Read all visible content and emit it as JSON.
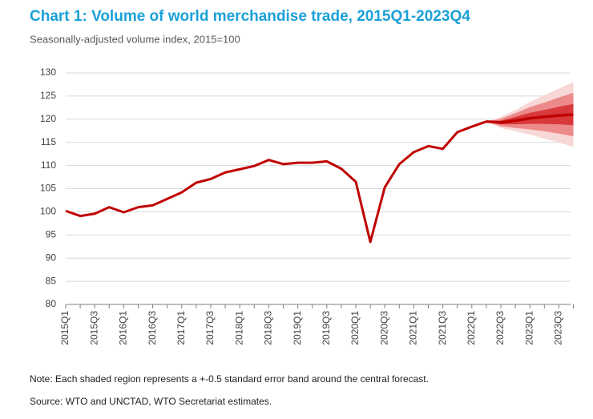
{
  "chart_data": {
    "type": "line",
    "title": "Chart 1: Volume of world merchandise trade, 2015Q1-2023Q4",
    "subtitle": "Seasonally-adjusted volume index, 2015=100",
    "note": "Note: Each shaded region represents a +-0.5 standard error band around the central forecast.",
    "source": "Source: WTO and UNCTAD, WTO Secretariat estimates.",
    "categories": [
      "2015Q1",
      null,
      "2015Q3",
      null,
      "2016Q1",
      null,
      "2016Q3",
      null,
      "2017Q1",
      null,
      "2017Q3",
      null,
      "2018Q1",
      null,
      "2018Q3",
      null,
      "2019Q1",
      null,
      "2019Q3",
      null,
      "2020Q1",
      null,
      "2020Q3",
      null,
      "2021Q1",
      null,
      "2021Q3",
      null,
      "2022Q1",
      null,
      "2022Q3",
      null,
      "2023Q1",
      null,
      "2023Q3",
      null
    ],
    "series": [
      {
        "color": "#c00000",
        "values": [
          100.2,
          99.1,
          99.6,
          101.0,
          99.9,
          101.0,
          101.4,
          102.8,
          104.2,
          106.3,
          107.1,
          108.5,
          109.2,
          109.9,
          111.2,
          110.3,
          110.6,
          110.6,
          110.9,
          109.3,
          106.5,
          93.5,
          105.3,
          110.3,
          112.9,
          114.2,
          113.6,
          117.2,
          118.4,
          119.5,
          null,
          null,
          null,
          null,
          null,
          null
        ]
      },
      {
        "color": "#c00000",
        "values": [
          null,
          null,
          null,
          null,
          null,
          null,
          null,
          null,
          null,
          null,
          null,
          null,
          null,
          null,
          null,
          null,
          null,
          null,
          null,
          null,
          null,
          null,
          null,
          null,
          null,
          null,
          null,
          null,
          null,
          119.5,
          119.3,
          119.7,
          120.2,
          120.5,
          120.8,
          121.0
        ]
      }
    ],
    "bands": [
      {
        "color": "#f8d7d7",
        "upper": [
          null,
          null,
          null,
          null,
          null,
          null,
          null,
          null,
          null,
          null,
          null,
          null,
          null,
          null,
          null,
          null,
          null,
          null,
          null,
          null,
          null,
          null,
          null,
          null,
          null,
          null,
          null,
          null,
          null,
          119.5,
          120.5,
          122.0,
          123.7,
          125.2,
          126.6,
          128.0
        ],
        "lower": [
          null,
          null,
          null,
          null,
          null,
          null,
          null,
          null,
          null,
          null,
          null,
          null,
          null,
          null,
          null,
          null,
          null,
          null,
          null,
          null,
          null,
          null,
          null,
          null,
          null,
          null,
          null,
          null,
          null,
          119.5,
          118.1,
          117.4,
          116.7,
          115.8,
          115.0,
          114.0
        ]
      },
      {
        "color": "#ec8a8a",
        "upper": [
          null,
          null,
          null,
          null,
          null,
          null,
          null,
          null,
          null,
          null,
          null,
          null,
          null,
          null,
          null,
          null,
          null,
          null,
          null,
          null,
          null,
          null,
          null,
          null,
          null,
          null,
          null,
          null,
          null,
          119.5,
          120.1,
          121.3,
          122.6,
          123.6,
          124.7,
          125.7
        ],
        "lower": [
          null,
          null,
          null,
          null,
          null,
          null,
          null,
          null,
          null,
          null,
          null,
          null,
          null,
          null,
          null,
          null,
          null,
          null,
          null,
          null,
          null,
          null,
          null,
          null,
          null,
          null,
          null,
          null,
          null,
          119.5,
          118.5,
          118.1,
          117.8,
          117.4,
          116.9,
          116.3
        ]
      },
      {
        "color": "#d9393b",
        "upper": [
          null,
          null,
          null,
          null,
          null,
          null,
          null,
          null,
          null,
          null,
          null,
          null,
          null,
          null,
          null,
          null,
          null,
          null,
          null,
          null,
          null,
          null,
          null,
          null,
          null,
          null,
          null,
          null,
          null,
          119.5,
          119.7,
          120.5,
          121.4,
          122.0,
          122.7,
          123.3
        ],
        "lower": [
          null,
          null,
          null,
          null,
          null,
          null,
          null,
          null,
          null,
          null,
          null,
          null,
          null,
          null,
          null,
          null,
          null,
          null,
          null,
          null,
          null,
          null,
          null,
          null,
          null,
          null,
          null,
          null,
          null,
          119.5,
          118.9,
          118.9,
          119.0,
          119.0,
          118.9,
          118.7
        ]
      }
    ],
    "ylim": [
      80,
      130
    ],
    "yticks": [
      80,
      85,
      90,
      95,
      100,
      105,
      110,
      115,
      120,
      125,
      130
    ],
    "grid": true
  }
}
